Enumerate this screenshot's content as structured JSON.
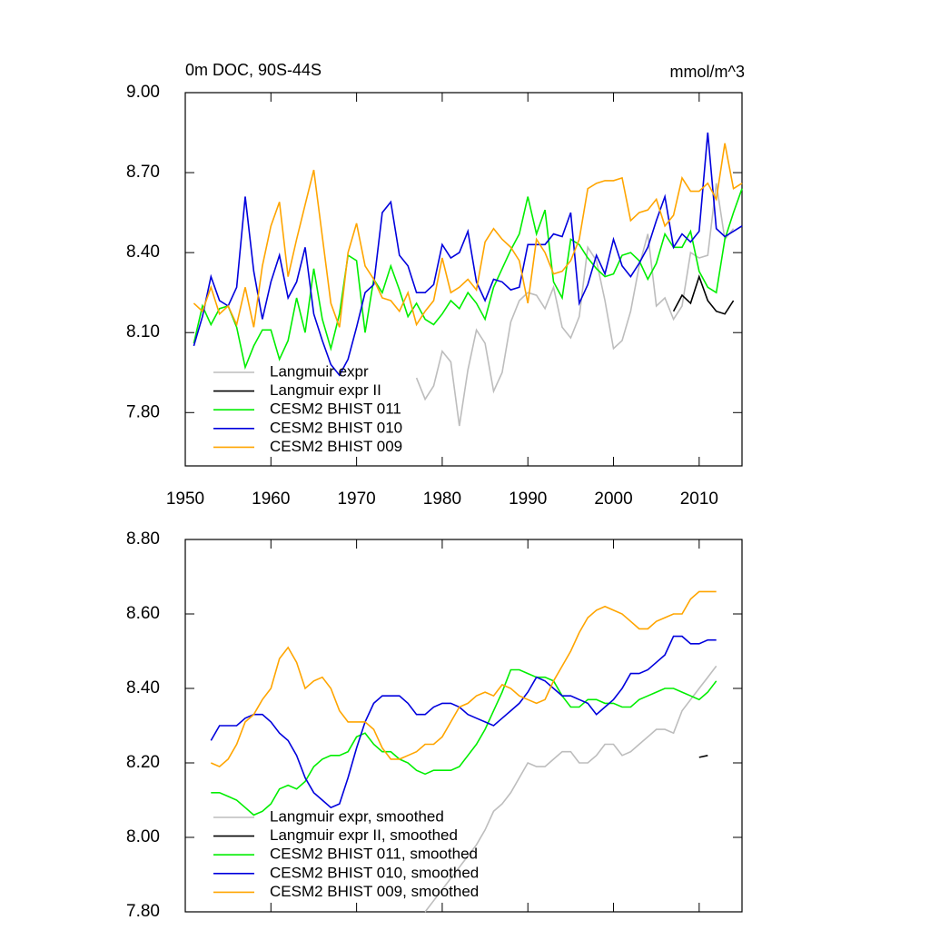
{
  "chart_data": [
    {
      "type": "line",
      "title": "0m DOC, 90S-44S",
      "units": "mmol/m^3",
      "x": [
        1951,
        1952,
        1953,
        1954,
        1955,
        1956,
        1957,
        1958,
        1959,
        1960,
        1961,
        1962,
        1963,
        1964,
        1965,
        1966,
        1967,
        1968,
        1969,
        1970,
        1971,
        1972,
        1973,
        1974,
        1975,
        1976,
        1977,
        1978,
        1979,
        1980,
        1981,
        1982,
        1983,
        1984,
        1985,
        1986,
        1987,
        1988,
        1989,
        1990,
        1991,
        1992,
        1993,
        1994,
        1995,
        1996,
        1997,
        1998,
        1999,
        2000,
        2001,
        2002,
        2003,
        2004,
        2005,
        2006,
        2007,
        2008,
        2009,
        2010,
        2011,
        2012,
        2013,
        2014,
        2015
      ],
      "xlim": [
        1950,
        2015
      ],
      "ylim": [
        7.6,
        9.0
      ],
      "xticks": [
        1950,
        1960,
        1970,
        1980,
        1990,
        2000,
        2010
      ],
      "xtick_labels": true,
      "yticks": [
        {
          "value": 7.8,
          "label": "7.80"
        },
        {
          "value": 8.1,
          "label": "8.10"
        },
        {
          "value": 8.4,
          "label": "8.40"
        },
        {
          "value": 8.7,
          "label": "8.70"
        },
        {
          "value": 9.0,
          "label": "9.00"
        }
      ],
      "legend": "lower left",
      "series": [
        {
          "name": "Langmuir expr",
          "color": "#bdbdbd",
          "values": [
            null,
            null,
            null,
            null,
            null,
            null,
            null,
            null,
            null,
            null,
            null,
            null,
            null,
            null,
            null,
            null,
            null,
            null,
            null,
            null,
            null,
            null,
            null,
            null,
            null,
            null,
            7.93,
            7.85,
            7.9,
            8.03,
            7.99,
            7.75,
            7.96,
            8.11,
            8.06,
            7.88,
            7.95,
            8.14,
            8.22,
            8.25,
            8.24,
            8.19,
            8.27,
            8.12,
            8.08,
            8.16,
            8.42,
            8.37,
            8.22,
            8.04,
            8.07,
            8.18,
            8.35,
            8.47,
            8.2,
            8.23,
            8.15,
            8.2,
            8.4,
            8.38,
            8.39,
            8.66,
            8.45,
            8.49,
            null
          ]
        },
        {
          "name": "Langmuir expr II",
          "color": "#000000",
          "values": [
            null,
            null,
            null,
            null,
            null,
            null,
            null,
            null,
            null,
            null,
            null,
            null,
            null,
            null,
            null,
            null,
            null,
            null,
            null,
            null,
            null,
            null,
            null,
            null,
            null,
            null,
            null,
            null,
            null,
            null,
            null,
            null,
            null,
            null,
            null,
            null,
            null,
            null,
            null,
            null,
            null,
            null,
            null,
            null,
            null,
            null,
            null,
            null,
            null,
            null,
            null,
            null,
            null,
            null,
            null,
            null,
            8.18,
            8.24,
            8.21,
            8.31,
            8.22,
            8.18,
            8.17,
            8.22,
            null
          ]
        },
        {
          "name": "CESM2 BHIST 011",
          "color": "#00ee00",
          "values": [
            8.06,
            8.2,
            8.13,
            8.19,
            8.2,
            8.12,
            7.97,
            8.05,
            8.11,
            8.11,
            8.0,
            8.07,
            8.23,
            8.1,
            8.34,
            8.15,
            8.04,
            8.17,
            8.39,
            8.37,
            8.1,
            8.3,
            8.25,
            8.35,
            8.26,
            8.16,
            8.21,
            8.15,
            8.13,
            8.17,
            8.22,
            8.19,
            8.25,
            8.21,
            8.15,
            8.27,
            8.34,
            8.41,
            8.47,
            8.61,
            8.47,
            8.56,
            8.29,
            8.23,
            8.45,
            8.43,
            8.38,
            8.34,
            8.31,
            8.32,
            8.39,
            8.4,
            8.37,
            8.3,
            8.36,
            8.47,
            8.42,
            8.42,
            8.48,
            8.33,
            8.27,
            8.25,
            8.45,
            8.55,
            8.64
          ]
        },
        {
          "name": "CESM2 BHIST 010",
          "color": "#0000dd",
          "values": [
            8.05,
            8.16,
            8.31,
            8.22,
            8.2,
            8.27,
            8.61,
            8.33,
            8.15,
            8.29,
            8.39,
            8.23,
            8.29,
            8.42,
            8.17,
            8.07,
            7.98,
            7.94,
            8.0,
            8.12,
            8.25,
            8.28,
            8.55,
            8.59,
            8.39,
            8.35,
            8.25,
            8.25,
            8.28,
            8.43,
            8.38,
            8.4,
            8.48,
            8.29,
            8.22,
            8.3,
            8.29,
            8.26,
            8.27,
            8.43,
            8.43,
            8.43,
            8.47,
            8.46,
            8.55,
            8.21,
            8.28,
            8.39,
            8.32,
            8.45,
            8.35,
            8.31,
            8.36,
            8.42,
            8.52,
            8.61,
            8.42,
            8.47,
            8.44,
            8.48,
            8.85,
            8.49,
            8.46,
            8.48,
            8.5
          ]
        },
        {
          "name": "CESM2 BHIST 009",
          "color": "#ffa500",
          "values": [
            8.21,
            8.18,
            8.27,
            8.17,
            8.2,
            8.13,
            8.27,
            8.12,
            8.35,
            8.5,
            8.59,
            8.31,
            8.45,
            8.58,
            8.71,
            8.46,
            8.21,
            8.12,
            8.4,
            8.51,
            8.35,
            8.3,
            8.23,
            8.22,
            8.18,
            8.25,
            8.13,
            8.18,
            8.22,
            8.38,
            8.25,
            8.27,
            8.3,
            8.26,
            8.44,
            8.49,
            8.45,
            8.42,
            8.37,
            8.21,
            8.45,
            8.4,
            8.32,
            8.33,
            8.37,
            8.45,
            8.64,
            8.66,
            8.67,
            8.67,
            8.68,
            8.52,
            8.55,
            8.56,
            8.6,
            8.5,
            8.54,
            8.68,
            8.63,
            8.63,
            8.66,
            8.6,
            8.81,
            8.64,
            8.66
          ]
        }
      ]
    },
    {
      "type": "line",
      "x": [
        1951,
        1952,
        1953,
        1954,
        1955,
        1956,
        1957,
        1958,
        1959,
        1960,
        1961,
        1962,
        1963,
        1964,
        1965,
        1966,
        1967,
        1968,
        1969,
        1970,
        1971,
        1972,
        1973,
        1974,
        1975,
        1976,
        1977,
        1978,
        1979,
        1980,
        1981,
        1982,
        1983,
        1984,
        1985,
        1986,
        1987,
        1988,
        1989,
        1990,
        1991,
        1992,
        1993,
        1994,
        1995,
        1996,
        1997,
        1998,
        1999,
        2000,
        2001,
        2002,
        2003,
        2004,
        2005,
        2006,
        2007,
        2008,
        2009,
        2010,
        2011,
        2012,
        2013,
        2014,
        2015
      ],
      "xlim": [
        1950,
        2015
      ],
      "ylim": [
        7.8,
        8.8
      ],
      "xticks": [
        1950,
        1960,
        1970,
        1980,
        1990,
        2000,
        2010
      ],
      "xtick_labels": false,
      "yticks": [
        {
          "value": 7.8,
          "label": "7.80"
        },
        {
          "value": 8.0,
          "label": "8.00"
        },
        {
          "value": 8.2,
          "label": "8.20"
        },
        {
          "value": 8.4,
          "label": "8.40"
        },
        {
          "value": 8.6,
          "label": "8.60"
        },
        {
          "value": 8.8,
          "label": "8.80"
        }
      ],
      "legend": "lower left",
      "series": [
        {
          "name": "Langmuir expr, smoothed",
          "color": "#bdbdbd",
          "values": [
            null,
            null,
            null,
            null,
            null,
            null,
            null,
            null,
            null,
            null,
            null,
            null,
            null,
            null,
            null,
            null,
            null,
            null,
            null,
            null,
            null,
            null,
            null,
            null,
            null,
            null,
            null,
            7.8,
            7.83,
            7.86,
            7.89,
            7.92,
            7.95,
            7.98,
            8.02,
            8.07,
            8.09,
            8.12,
            8.16,
            8.2,
            8.19,
            8.19,
            8.21,
            8.23,
            8.23,
            8.2,
            8.2,
            8.22,
            8.25,
            8.25,
            8.22,
            8.23,
            8.25,
            8.27,
            8.29,
            8.29,
            8.28,
            8.34,
            8.37,
            8.4,
            8.43,
            8.46,
            null,
            null,
            null
          ]
        },
        {
          "name": "Langmuir expr II, smoothed",
          "color": "#000000",
          "values": [
            null,
            null,
            null,
            null,
            null,
            null,
            null,
            null,
            null,
            null,
            null,
            null,
            null,
            null,
            null,
            null,
            null,
            null,
            null,
            null,
            null,
            null,
            null,
            null,
            null,
            null,
            null,
            null,
            null,
            null,
            null,
            null,
            null,
            null,
            null,
            null,
            null,
            null,
            null,
            null,
            null,
            null,
            null,
            null,
            null,
            null,
            null,
            null,
            null,
            null,
            null,
            null,
            null,
            null,
            null,
            null,
            null,
            null,
            null,
            8.215,
            8.22,
            null,
            null,
            null,
            null
          ]
        },
        {
          "name": "CESM2 BHIST 011, smoothed",
          "color": "#00ee00",
          "values": [
            null,
            null,
            8.12,
            8.12,
            8.11,
            8.1,
            8.08,
            8.06,
            8.07,
            8.09,
            8.13,
            8.14,
            8.13,
            8.15,
            8.19,
            8.21,
            8.22,
            8.22,
            8.23,
            8.27,
            8.28,
            8.25,
            8.23,
            8.23,
            8.21,
            8.2,
            8.18,
            8.17,
            8.18,
            8.18,
            8.18,
            8.19,
            8.22,
            8.25,
            8.29,
            8.34,
            8.39,
            8.45,
            8.45,
            8.44,
            8.43,
            8.43,
            8.42,
            8.38,
            8.35,
            8.35,
            8.37,
            8.37,
            8.36,
            8.36,
            8.35,
            8.35,
            8.37,
            8.38,
            8.39,
            8.4,
            8.4,
            8.39,
            8.38,
            8.37,
            8.39,
            8.42,
            null,
            null,
            null
          ]
        },
        {
          "name": "CESM2 BHIST 010, smoothed",
          "color": "#0000dd",
          "values": [
            null,
            null,
            8.26,
            8.3,
            8.3,
            8.3,
            8.32,
            8.33,
            8.33,
            8.31,
            8.28,
            8.26,
            8.22,
            8.16,
            8.12,
            8.1,
            8.08,
            8.09,
            8.16,
            8.24,
            8.31,
            8.36,
            8.38,
            8.38,
            8.38,
            8.36,
            8.33,
            8.33,
            8.35,
            8.36,
            8.36,
            8.35,
            8.33,
            8.32,
            8.31,
            8.3,
            8.32,
            8.34,
            8.36,
            8.39,
            8.43,
            8.42,
            8.4,
            8.38,
            8.38,
            8.37,
            8.36,
            8.33,
            8.35,
            8.37,
            8.4,
            8.44,
            8.44,
            8.45,
            8.47,
            8.49,
            8.54,
            8.54,
            8.52,
            8.52,
            8.53,
            8.53,
            null,
            null,
            null
          ]
        },
        {
          "name": "CESM2 BHIST 009, smoothed",
          "color": "#ffa500",
          "values": [
            null,
            null,
            8.2,
            8.19,
            8.21,
            8.25,
            8.31,
            8.33,
            8.37,
            8.4,
            8.48,
            8.51,
            8.47,
            8.4,
            8.42,
            8.43,
            8.4,
            8.34,
            8.31,
            8.31,
            8.31,
            8.29,
            8.24,
            8.21,
            8.21,
            8.22,
            8.23,
            8.25,
            8.25,
            8.27,
            8.31,
            8.35,
            8.36,
            8.38,
            8.39,
            8.38,
            8.41,
            8.4,
            8.38,
            8.37,
            8.36,
            8.37,
            8.42,
            8.46,
            8.5,
            8.55,
            8.59,
            8.61,
            8.62,
            8.61,
            8.6,
            8.58,
            8.56,
            8.56,
            8.58,
            8.59,
            8.6,
            8.6,
            8.64,
            8.66,
            8.66,
            8.66,
            null,
            null,
            null
          ]
        }
      ]
    }
  ]
}
